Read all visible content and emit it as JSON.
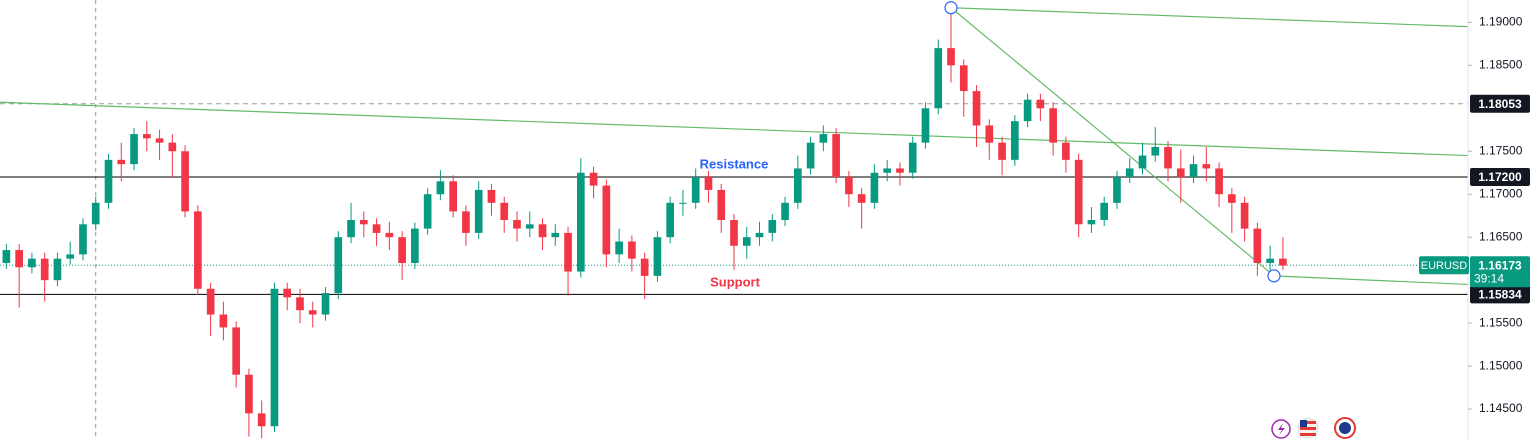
{
  "chart_data": {
    "type": "candlestick",
    "symbol": "EURUSD",
    "countdown": "39:14",
    "up_color": "#089981",
    "down_color": "#f23645",
    "xlim": [
      0,
      115
    ],
    "ylim": [
      1.1414,
      1.1926
    ],
    "yticks": [
      {
        "value": 1.19,
        "label": "1.19000"
      },
      {
        "value": 1.185,
        "label": "1.18500"
      },
      {
        "value": 1.175,
        "label": "1.17500"
      },
      {
        "value": 1.17,
        "label": "1.17000"
      },
      {
        "value": 1.165,
        "label": "1.16500"
      },
      {
        "value": 1.155,
        "label": "1.15500"
      },
      {
        "value": 1.15,
        "label": "1.15000"
      },
      {
        "value": 1.145,
        "label": "1.14500"
      }
    ],
    "open": [
      1.162,
      1.1635,
      1.1615,
      1.1625,
      1.16,
      1.1625,
      1.163,
      1.1665,
      1.169,
      1.174,
      1.1735,
      1.177,
      1.1765,
      1.176,
      1.175,
      1.168,
      1.159,
      1.156,
      1.1545,
      1.149,
      1.1445,
      1.143,
      1.159,
      1.158,
      1.1565,
      1.156,
      1.1585,
      1.165,
      1.167,
      1.1665,
      1.1655,
      1.165,
      1.162,
      1.166,
      1.17,
      1.1715,
      1.168,
      1.1655,
      1.1705,
      1.169,
      1.167,
      1.166,
      1.1665,
      1.165,
      1.1655,
      1.161,
      1.1725,
      1.171,
      1.163,
      1.1645,
      1.1625,
      1.1605,
      1.165,
      1.169,
      1.169,
      1.172,
      1.1705,
      1.167,
      1.164,
      1.165,
      1.1655,
      1.167,
      1.169,
      1.173,
      1.176,
      1.177,
      1.172,
      1.17,
      1.169,
      1.1725,
      1.173,
      1.1725,
      1.176,
      1.18,
      1.187,
      1.185,
      1.182,
      1.178,
      1.176,
      1.174,
      1.1785,
      1.181,
      1.18,
      1.176,
      1.174,
      1.1665,
      1.167,
      1.169,
      1.172,
      1.173,
      1.1745,
      1.1755,
      1.173,
      1.172,
      1.1735,
      1.173,
      1.17,
      1.169,
      1.166,
      1.162,
      1.1625
    ],
    "high": [
      1.1642,
      1.1642,
      1.1632,
      1.1632,
      1.1632,
      1.1645,
      1.1672,
      1.1697,
      1.1747,
      1.176,
      1.1777,
      1.1785,
      1.1775,
      1.177,
      1.1757,
      1.1687,
      1.1597,
      1.1575,
      1.1552,
      1.1497,
      1.146,
      1.1597,
      1.1597,
      1.159,
      1.1575,
      1.1592,
      1.1657,
      1.169,
      1.168,
      1.1672,
      1.1668,
      1.1657,
      1.1667,
      1.1707,
      1.1728,
      1.1722,
      1.1687,
      1.1715,
      1.1712,
      1.1697,
      1.168,
      1.168,
      1.1672,
      1.1665,
      1.1662,
      1.1742,
      1.1732,
      1.1717,
      1.166,
      1.1652,
      1.1632,
      1.1657,
      1.1697,
      1.1705,
      1.173,
      1.1727,
      1.1712,
      1.1677,
      1.1662,
      1.1668,
      1.1677,
      1.1697,
      1.1745,
      1.1767,
      1.178,
      1.1777,
      1.1727,
      1.1707,
      1.1735,
      1.174,
      1.1737,
      1.1767,
      1.1807,
      1.188,
      1.1914,
      1.1857,
      1.1827,
      1.1787,
      1.1767,
      1.1792,
      1.1817,
      1.1817,
      1.1807,
      1.1767,
      1.1747,
      1.1685,
      1.1697,
      1.1727,
      1.1742,
      1.176,
      1.1778,
      1.1762,
      1.1752,
      1.1745,
      1.1755,
      1.1737,
      1.1707,
      1.1697,
      1.1667,
      1.164,
      1.165
    ],
    "low": [
      1.1613,
      1.1568,
      1.1608,
      1.1575,
      1.1593,
      1.1618,
      1.1623,
      1.1658,
      1.1683,
      1.1715,
      1.1728,
      1.175,
      1.174,
      1.172,
      1.1673,
      1.1583,
      1.1535,
      1.153,
      1.1475,
      1.1418,
      1.1416,
      1.1423,
      1.1565,
      1.155,
      1.1545,
      1.1553,
      1.1578,
      1.1643,
      1.165,
      1.164,
      1.1635,
      1.16,
      1.1613,
      1.1653,
      1.1693,
      1.1673,
      1.164,
      1.1648,
      1.1675,
      1.1655,
      1.1645,
      1.165,
      1.1635,
      1.164,
      1.1582,
      1.1603,
      1.1695,
      1.1615,
      1.162,
      1.161,
      1.1578,
      1.1598,
      1.1643,
      1.1675,
      1.1683,
      1.169,
      1.1655,
      1.1612,
      1.1625,
      1.164,
      1.1645,
      1.1663,
      1.1683,
      1.1723,
      1.175,
      1.1713,
      1.1685,
      1.166,
      1.1683,
      1.1715,
      1.171,
      1.1718,
      1.1753,
      1.1793,
      1.183,
      1.179,
      1.1755,
      1.174,
      1.1722,
      1.1733,
      1.1778,
      1.1785,
      1.1745,
      1.1725,
      1.165,
      1.1655,
      1.1663,
      1.1683,
      1.1713,
      1.1723,
      1.1738,
      1.1715,
      1.169,
      1.1713,
      1.1715,
      1.1685,
      1.1655,
      1.1645,
      1.1605,
      1.161,
      1.1612
    ],
    "close": [
      1.1635,
      1.1615,
      1.1625,
      1.16,
      1.1625,
      1.163,
      1.1665,
      1.169,
      1.174,
      1.1735,
      1.177,
      1.1765,
      1.176,
      1.175,
      1.168,
      1.159,
      1.156,
      1.1545,
      1.149,
      1.1445,
      1.143,
      1.159,
      1.158,
      1.1565,
      1.156,
      1.1585,
      1.165,
      1.167,
      1.1665,
      1.1655,
      1.165,
      1.162,
      1.166,
      1.17,
      1.1715,
      1.168,
      1.1655,
      1.1705,
      1.169,
      1.167,
      1.166,
      1.1665,
      1.165,
      1.1655,
      1.161,
      1.1725,
      1.171,
      1.163,
      1.1645,
      1.1625,
      1.1605,
      1.165,
      1.169,
      1.169,
      1.172,
      1.1705,
      1.167,
      1.164,
      1.165,
      1.1655,
      1.167,
      1.169,
      1.173,
      1.176,
      1.177,
      1.172,
      1.17,
      1.169,
      1.1725,
      1.173,
      1.1725,
      1.176,
      1.18,
      1.187,
      1.185,
      1.182,
      1.178,
      1.176,
      1.174,
      1.1785,
      1.181,
      1.18,
      1.176,
      1.174,
      1.1665,
      1.167,
      1.169,
      1.172,
      1.173,
      1.1745,
      1.1755,
      1.173,
      1.172,
      1.1735,
      1.173,
      1.17,
      1.169,
      1.166,
      1.162,
      1.1625,
      1.1617
    ],
    "price_lines": [
      {
        "value": 1.18053,
        "label": "1.18053",
        "style": "dashed",
        "color": "#9598a1"
      },
      {
        "value": 1.172,
        "label": "1.17200",
        "style": "solid",
        "color": "#000000"
      },
      {
        "value": 1.15834,
        "label": "1.15834",
        "style": "solid",
        "color": "#000000"
      }
    ],
    "current_price": {
      "value": 1.16173,
      "label": "1.16173",
      "color": "#089981"
    },
    "trend_lines": [
      {
        "x": [
          74.5,
          115
        ],
        "y": [
          1.1917,
          1.1895
        ],
        "color": "#66bb6a"
      },
      {
        "x": [
          0,
          115
        ],
        "y": [
          1.1807,
          1.1745
        ],
        "color": "#66bb6a"
      },
      {
        "x": [
          74.5,
          99.8
        ],
        "y": [
          1.1917,
          1.1605
        ],
        "color": "#66bb6a"
      },
      {
        "x": [
          99.8,
          115
        ],
        "y": [
          1.1605,
          1.1595
        ],
        "color": "#66bb6a"
      }
    ],
    "handles": {
      "x": [
        74.5,
        99.8
      ],
      "y": [
        1.1917,
        1.1605
      ],
      "color": "#2962ff"
    },
    "crosshair_x": 7.5,
    "annotations": [
      {
        "text": "Resistance",
        "color": "#2962ff"
      },
      {
        "text": "Support",
        "color": "#f23645"
      }
    ]
  }
}
